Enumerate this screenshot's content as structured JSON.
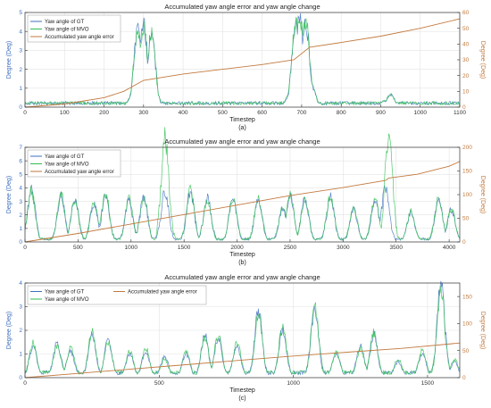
{
  "chart_data": [
    {
      "type": "line",
      "title": "Accumulated yaw angle error and yaw angle change",
      "caption": "(a)",
      "xlabel": "Timestep",
      "ylabel_left": "Degree (Deg)",
      "ylabel_right": "Degree (Deg)",
      "xlim": [
        0,
        1100
      ],
      "ylim_left": [
        0,
        5
      ],
      "ylim_right": [
        0,
        60
      ],
      "xticks": [
        "0",
        "100",
        "200",
        "300",
        "400",
        "500",
        "600",
        "700",
        "800",
        "900",
        "1000",
        "1100"
      ],
      "yticks_left": [
        "0",
        "1",
        "2",
        "3",
        "4",
        "5"
      ],
      "yticks_right": [
        "0",
        "10",
        "20",
        "30",
        "40",
        "50",
        "60"
      ],
      "grid": true,
      "legend_position": "top-left",
      "series": [
        {
          "name": "Yaw angle of GT",
          "axis": "left",
          "color": "#3d6fbf",
          "peaks": [
            [
              270,
              0.5
            ],
            [
              285,
              3.6
            ],
            [
              300,
              3.9
            ],
            [
              320,
              3.5
            ],
            [
              345,
              0.2
            ],
            [
              670,
              0.6
            ],
            [
              685,
              3.8
            ],
            [
              695,
              4.2
            ],
            [
              710,
              4.0
            ],
            [
              725,
              1.0
            ],
            [
              740,
              0.2
            ],
            [
              910,
              0.3
            ],
            [
              925,
              0.6
            ],
            [
              940,
              0.2
            ]
          ]
        },
        {
          "name": "Yaw angle of MVO",
          "axis": "left",
          "color": "#2fbf4f",
          "peaks": [
            [
              270,
              0.5
            ],
            [
              285,
              3.5
            ],
            [
              300,
              3.8
            ],
            [
              320,
              3.4
            ],
            [
              345,
              0.2
            ],
            [
              670,
              0.7
            ],
            [
              685,
              3.9
            ],
            [
              695,
              4.3
            ],
            [
              710,
              4.1
            ],
            [
              725,
              1.1
            ],
            [
              740,
              0.2
            ],
            [
              910,
              0.3
            ],
            [
              925,
              0.6
            ],
            [
              940,
              0.2
            ]
          ]
        },
        {
          "name": "Accumulated yaw angle error",
          "axis": "right",
          "color": "#c27a3f",
          "points": [
            [
              0,
              0
            ],
            [
              100,
              2
            ],
            [
              200,
              6
            ],
            [
              250,
              10
            ],
            [
              300,
              17
            ],
            [
              400,
              21
            ],
            [
              500,
              24
            ],
            [
              600,
              27
            ],
            [
              680,
              30
            ],
            [
              720,
              38
            ],
            [
              800,
              41
            ],
            [
              900,
              45
            ],
            [
              1000,
              50
            ],
            [
              1100,
              56
            ]
          ]
        }
      ]
    },
    {
      "type": "line",
      "title": "Accumulated yaw angle error and yaw angle change",
      "caption": "(b)",
      "xlabel": "Timestep",
      "ylabel_left": "Degree (Deg)",
      "ylabel_right": "Degree (Deg)",
      "xlim": [
        0,
        4100
      ],
      "ylim_left": [
        0,
        7
      ],
      "ylim_right": [
        0,
        200
      ],
      "xticks": [
        "0",
        "500",
        "1000",
        "1500",
        "2000",
        "2500",
        "3000",
        "3500",
        "4000"
      ],
      "yticks_left": [
        "0",
        "1",
        "2",
        "3",
        "4",
        "5",
        "6",
        "7"
      ],
      "yticks_right": [
        "0",
        "50",
        "100",
        "150",
        "200"
      ],
      "grid": true,
      "legend_position": "top-left",
      "series": [
        {
          "name": "Yaw angle of GT",
          "axis": "left",
          "color": "#3d6fbf",
          "peaks": [
            [
              60,
              3.4
            ],
            [
              340,
              3.0
            ],
            [
              470,
              2.8
            ],
            [
              650,
              2.5
            ],
            [
              760,
              3.1
            ],
            [
              980,
              2.7
            ],
            [
              1120,
              2.9
            ],
            [
              1320,
              3.3
            ],
            [
              1560,
              3.3
            ],
            [
              1720,
              2.9
            ],
            [
              1960,
              2.9
            ],
            [
              2200,
              2.8
            ],
            [
              2430,
              2.2
            ],
            [
              2500,
              3.0
            ],
            [
              2640,
              2.8
            ],
            [
              2880,
              3.0
            ],
            [
              3100,
              2.1
            ],
            [
              3300,
              2.8
            ],
            [
              3400,
              3.6
            ],
            [
              3640,
              1.9
            ],
            [
              3900,
              2.9
            ],
            [
              4020,
              2.1
            ]
          ]
        },
        {
          "name": "Yaw angle of MVO",
          "axis": "left",
          "color": "#2fbf4f",
          "peaks": [
            [
              60,
              3.3
            ],
            [
              340,
              3.1
            ],
            [
              470,
              2.7
            ],
            [
              650,
              2.6
            ],
            [
              760,
              3.2
            ],
            [
              980,
              2.8
            ],
            [
              1120,
              3.0
            ],
            [
              1320,
              6.8
            ],
            [
              1560,
              3.4
            ],
            [
              1720,
              2.8
            ],
            [
              1960,
              2.8
            ],
            [
              2200,
              2.9
            ],
            [
              2430,
              2.3
            ],
            [
              2500,
              3.1
            ],
            [
              2640,
              2.7
            ],
            [
              2880,
              3.1
            ],
            [
              3100,
              2.2
            ],
            [
              3300,
              2.9
            ],
            [
              3430,
              7.0
            ],
            [
              3640,
              2.0
            ],
            [
              3900,
              2.8
            ],
            [
              4020,
              2.2
            ]
          ]
        },
        {
          "name": "Accumulated yaw angle error",
          "axis": "right",
          "color": "#c27a3f",
          "points": [
            [
              0,
              0
            ],
            [
              500,
              18
            ],
            [
              1000,
              38
            ],
            [
              1500,
              58
            ],
            [
              2000,
              78
            ],
            [
              2500,
              98
            ],
            [
              3000,
              115
            ],
            [
              3400,
              130
            ],
            [
              3430,
              135
            ],
            [
              3700,
              143
            ],
            [
              4000,
              160
            ],
            [
              4100,
              170
            ]
          ]
        }
      ]
    },
    {
      "type": "line",
      "title": "Accumulated yaw angle error and yaw angle change",
      "caption": "(c)",
      "xlabel": "Timestep",
      "ylabel_left": "Degree (Deg)",
      "ylabel_right": "Degree (Deg)",
      "xlim": [
        0,
        1620
      ],
      "ylim_left": [
        0,
        4
      ],
      "ylim_right": [
        0,
        175
      ],
      "xticks": [
        "0",
        "500",
        "1000",
        "1500"
      ],
      "yticks_left": [
        "0",
        "1",
        "2",
        "3",
        "4"
      ],
      "yticks_right": [
        "0",
        "50",
        "100",
        "150"
      ],
      "grid": true,
      "legend_position": "top-left",
      "series": [
        {
          "name": "Yaw angle of GT",
          "axis": "left",
          "color": "#3d6fbf",
          "peaks": [
            [
              30,
              1.2
            ],
            [
              120,
              1.3
            ],
            [
              170,
              1.0
            ],
            [
              250,
              1.6
            ],
            [
              310,
              1.4
            ],
            [
              390,
              0.9
            ],
            [
              450,
              1.0
            ],
            [
              520,
              0.8
            ],
            [
              600,
              0.9
            ],
            [
              670,
              1.6
            ],
            [
              720,
              1.5
            ],
            [
              790,
              1.2
            ],
            [
              870,
              2.5
            ],
            [
              960,
              1.8
            ],
            [
              1080,
              2.6
            ],
            [
              1160,
              0.9
            ],
            [
              1250,
              1.2
            ],
            [
              1300,
              1.6
            ],
            [
              1390,
              0.6
            ],
            [
              1480,
              0.9
            ],
            [
              1550,
              3.5
            ],
            [
              1600,
              0.6
            ]
          ]
        },
        {
          "name": "Yaw angle of MVO",
          "axis": "left",
          "color": "#2fbf4f",
          "peaks": [
            [
              30,
              1.3
            ],
            [
              120,
              1.2
            ],
            [
              170,
              1.1
            ],
            [
              250,
              1.7
            ],
            [
              310,
              1.3
            ],
            [
              390,
              1.0
            ],
            [
              450,
              1.1
            ],
            [
              520,
              0.7
            ],
            [
              600,
              1.0
            ],
            [
              670,
              1.5
            ],
            [
              720,
              1.6
            ],
            [
              790,
              1.3
            ],
            [
              870,
              2.4
            ],
            [
              960,
              1.9
            ],
            [
              1080,
              2.7
            ],
            [
              1160,
              1.0
            ],
            [
              1250,
              1.1
            ],
            [
              1300,
              1.7
            ],
            [
              1390,
              0.7
            ],
            [
              1480,
              1.0
            ],
            [
              1550,
              3.3
            ],
            [
              1600,
              0.7
            ]
          ]
        },
        {
          "name": "Accumulated yaw angle error",
          "axis": "right",
          "color": "#c27a3f",
          "points": [
            [
              0,
              0
            ],
            [
              200,
              8
            ],
            [
              400,
              16
            ],
            [
              600,
              24
            ],
            [
              800,
              32
            ],
            [
              1000,
              40
            ],
            [
              1200,
              47
            ],
            [
              1400,
              54
            ],
            [
              1620,
              64
            ]
          ]
        }
      ]
    }
  ]
}
